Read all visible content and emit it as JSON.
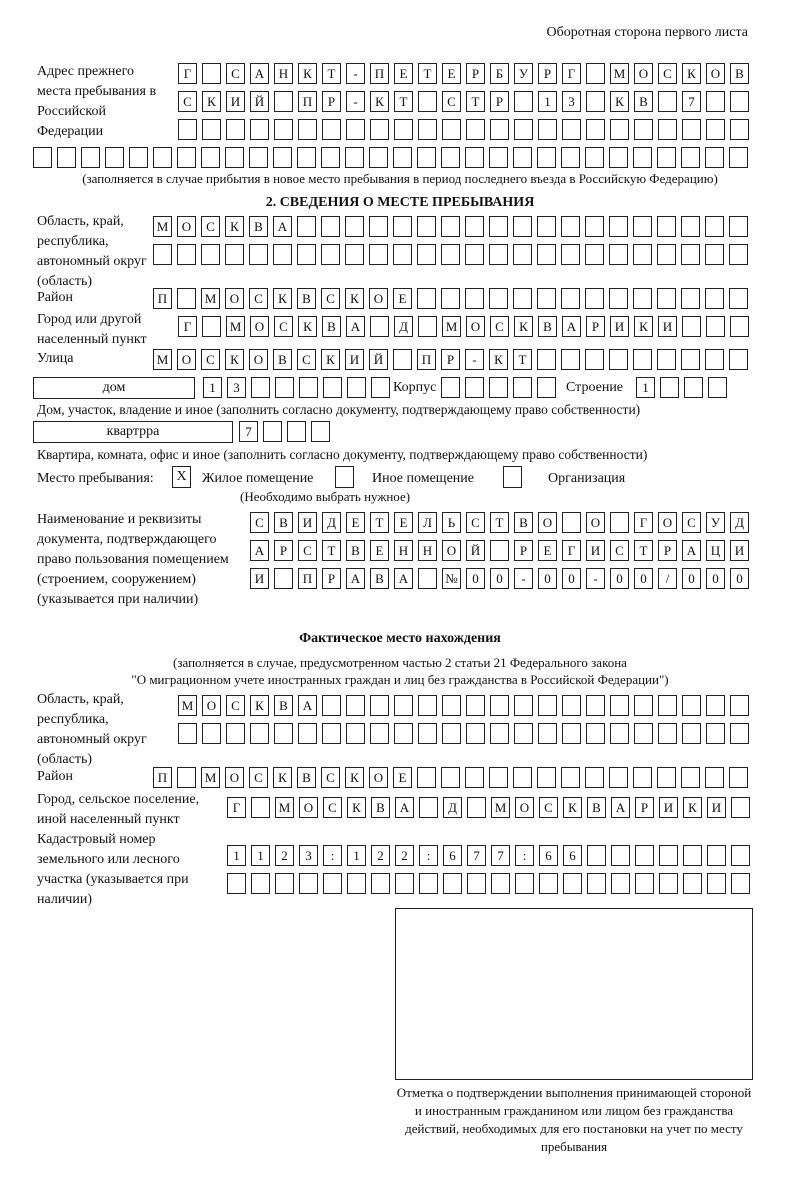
{
  "header": {
    "page_side": "Оборотная сторона первого листа"
  },
  "prev_address": {
    "label": "Адрес прежнего места пребывания в Российской Федерации",
    "rows": [
      [
        "Г",
        "",
        "С",
        "А",
        "Н",
        "К",
        "Т",
        "-",
        "П",
        "Е",
        "Т",
        "Е",
        "Р",
        "Б",
        "У",
        "Р",
        "Г",
        "",
        "М",
        "О",
        "С",
        "К",
        "О",
        "В"
      ],
      [
        "С",
        "К",
        "И",
        "Й",
        "",
        "П",
        "Р",
        "-",
        "К",
        "Т",
        "",
        "С",
        "Т",
        "Р",
        "",
        "1",
        "3",
        "",
        "К",
        "В",
        "",
        "7",
        "",
        ""
      ],
      [
        "",
        "",
        "",
        "",
        "",
        "",
        "",
        "",
        "",
        "",
        "",
        "",
        "",
        "",
        "",
        "",
        "",
        "",
        "",
        "",
        "",
        "",
        "",
        ""
      ],
      [
        "",
        "",
        "",
        "",
        "",
        "",
        "",
        "",
        "",
        "",
        "",
        "",
        "",
        "",
        "",
        "",
        "",
        "",
        "",
        "",
        "",
        "",
        "",
        "",
        "",
        "",
        "",
        "",
        "",
        ""
      ]
    ],
    "note": "(заполняется в случае прибытия в новое место пребывания в период последнего въезда в Российскую Федерацию)"
  },
  "section2": {
    "title": "2. СВЕДЕНИЯ О МЕСТЕ ПРЕБЫВАНИЯ",
    "region_label": "Область, край, республика, автономный округ (область)",
    "region_rows": [
      [
        "М",
        "О",
        "С",
        "К",
        "В",
        "А",
        "",
        "",
        "",
        "",
        "",
        "",
        "",
        "",
        "",
        "",
        "",
        "",
        "",
        "",
        "",
        "",
        "",
        "",
        ""
      ],
      [
        "",
        "",
        "",
        "",
        "",
        "",
        "",
        "",
        "",
        "",
        "",
        "",
        "",
        "",
        "",
        "",
        "",
        "",
        "",
        "",
        "",
        "",
        "",
        "",
        ""
      ]
    ],
    "district_label": "Район",
    "district_row": [
      "П",
      "",
      "М",
      "О",
      "С",
      "К",
      "В",
      "С",
      "К",
      "О",
      "Е",
      "",
      "",
      "",
      "",
      "",
      "",
      "",
      "",
      "",
      "",
      "",
      "",
      "",
      ""
    ],
    "city_label": "Город или другой населенный пункт",
    "city_row": [
      "Г",
      "",
      "М",
      "О",
      "С",
      "К",
      "В",
      "А",
      "",
      "Д",
      "",
      "М",
      "О",
      "С",
      "К",
      "В",
      "А",
      "Р",
      "И",
      "К",
      "И",
      "",
      "",
      ""
    ],
    "street_label": "Улица",
    "street_row": [
      "М",
      "О",
      "С",
      "К",
      "О",
      "В",
      "С",
      "К",
      "И",
      "Й",
      "",
      "П",
      "Р",
      "-",
      "К",
      "Т",
      "",
      "",
      "",
      "",
      "",
      "",
      "",
      "",
      ""
    ],
    "house_type": "дом",
    "house_cells": [
      "1",
      "3",
      "",
      "",
      "",
      "",
      "",
      ""
    ],
    "korpus_label": "Корпус",
    "korpus_cells": [
      "",
      "",
      "",
      "",
      ""
    ],
    "stroenie_label": "Строение",
    "stroenie_cells": [
      "1",
      "",
      "",
      ""
    ],
    "house_note": "Дом, участок, владение и иное (заполнить согласно документу, подтверждающему право собственности)",
    "flat_type": "квартрра",
    "flat_cells": [
      "7",
      "",
      "",
      ""
    ],
    "flat_note": "Квартира, комната, офис и иное (заполнить согласно документу, подтверждающему право собственности)",
    "stay_place_label": "Место пребывания:",
    "options": [
      {
        "label": "Жилое помещение",
        "mark": "X"
      },
      {
        "label": "Иное помещение",
        "mark": ""
      },
      {
        "label": "Организация",
        "mark": ""
      }
    ],
    "choose_note": "(Необходимо выбрать нужное)",
    "doc_label": "Наименование и реквизиты документа, подтверждающего право пользования помещением (строением, сооружением) (указывается при наличии)",
    "doc_rows": [
      [
        "С",
        "В",
        "И",
        "Д",
        "Е",
        "Т",
        "Е",
        "Л",
        "Ь",
        "С",
        "Т",
        "В",
        "О",
        "",
        "О",
        "",
        "Г",
        "О",
        "С",
        "У",
        "Д"
      ],
      [
        "А",
        "Р",
        "С",
        "Т",
        "В",
        "Е",
        "Н",
        "Н",
        "О",
        "Й",
        "",
        "Р",
        "Е",
        "Г",
        "И",
        "С",
        "Т",
        "Р",
        "А",
        "Ц",
        "И"
      ],
      [
        "И",
        "",
        "П",
        "Р",
        "А",
        "В",
        "А",
        "",
        "№",
        "0",
        "0",
        "-",
        "0",
        "0",
        "-",
        "0",
        "0",
        "/",
        "0",
        "0",
        "0"
      ]
    ]
  },
  "actual": {
    "title": "Фактическое место нахождения",
    "note1": "(заполняется в случае, предусмотренном частью 2 статьи 21 Федерального закона",
    "note2": "\"О миграционном учете иностранных граждан и лиц без гражданства в Российской Федерации\")",
    "region_label": "Область, край, республика, автономный округ (область)",
    "region_rows": [
      [
        "М",
        "О",
        "С",
        "К",
        "В",
        "А",
        "",
        "",
        "",
        "",
        "",
        "",
        "",
        "",
        "",
        "",
        "",
        "",
        "",
        "",
        "",
        "",
        "",
        ""
      ],
      [
        "",
        "",
        "",
        "",
        "",
        "",
        "",
        "",
        "",
        "",
        "",
        "",
        "",
        "",
        "",
        "",
        "",
        "",
        "",
        "",
        "",
        "",
        "",
        ""
      ]
    ],
    "district_label": "Район",
    "district_row": [
      "П",
      "",
      "М",
      "О",
      "С",
      "К",
      "В",
      "С",
      "К",
      "О",
      "Е",
      "",
      "",
      "",
      "",
      "",
      "",
      "",
      "",
      "",
      "",
      "",
      "",
      "",
      ""
    ],
    "city_label": "Город, сельское поселение, иной населенный пункт",
    "city_row": [
      "Г",
      "",
      "М",
      "О",
      "С",
      "К",
      "В",
      "А",
      "",
      "Д",
      "",
      "М",
      "О",
      "С",
      "К",
      "В",
      "А",
      "Р",
      "И",
      "К",
      "И",
      ""
    ],
    "cadastral_label": "Кадастровый номер земельного или лесного участка (указывается при наличии)",
    "cadastral_rows": [
      [
        "1",
        "1",
        "2",
        "3",
        ":",
        "1",
        "2",
        "2",
        ":",
        "6",
        "7",
        "7",
        ":",
        "6",
        "6",
        "",
        "",
        "",
        "",
        "",
        "",
        ""
      ],
      [
        "",
        "",
        "",
        "",
        "",
        "",
        "",
        "",
        "",
        "",
        "",
        "",
        "",
        "",
        "",
        "",
        "",
        "",
        "",
        "",
        "",
        ""
      ]
    ],
    "stamp_caption": "Отметка о подтверждении выполнения принимающей стороной и иностранным гражданином или лицом без гражданства действий, необходимых для его постановки на учет по месту пребывания"
  }
}
